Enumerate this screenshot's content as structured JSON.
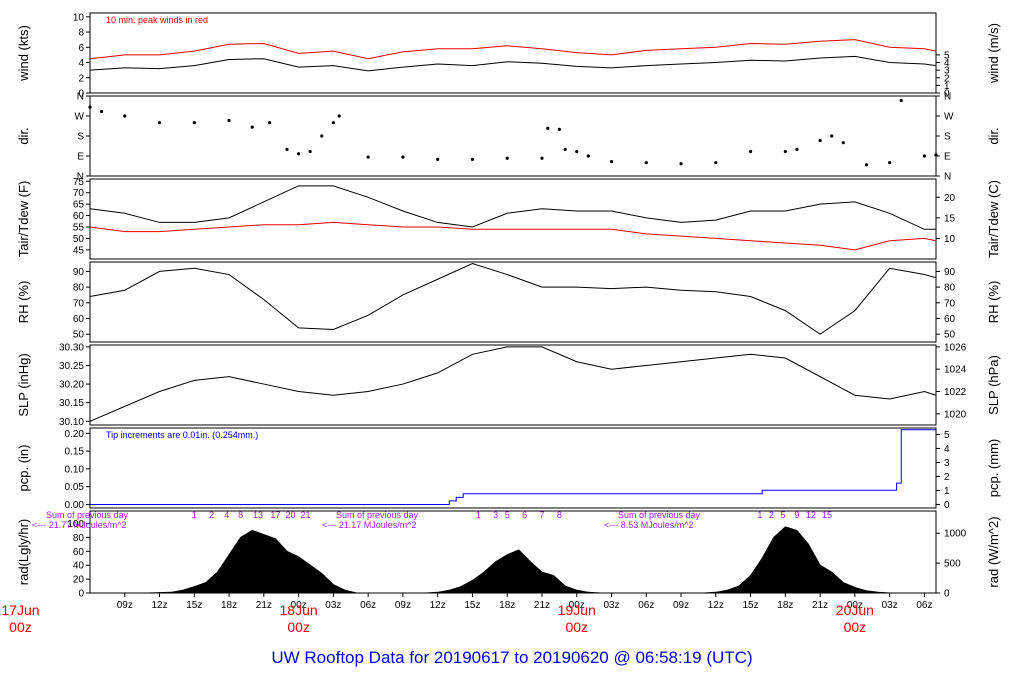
{
  "caption": "UW Rooftop Data for 20190617  to  20190620 @ 06:58:19  (UTC)",
  "colors": {
    "black": "#000000",
    "red": "#ee0000",
    "blue": "#0000ee",
    "purple": "#a020f0"
  },
  "chart_data": {
    "type": "line",
    "time": {
      "hours_start": 6,
      "hours_end": 79,
      "hour_ticks": [
        "09z",
        "12z",
        "15z",
        "18z",
        "21z",
        "00z",
        "03z",
        "06z",
        "09z",
        "12z",
        "15z",
        "18z",
        "21z",
        "00z",
        "03z",
        "06z",
        "09z",
        "12z",
        "15z",
        "18z",
        "21z",
        "00z",
        "03z",
        "06z"
      ],
      "hour_tick_values": [
        9,
        12,
        15,
        18,
        21,
        24,
        27,
        30,
        33,
        36,
        39,
        42,
        45,
        48,
        51,
        54,
        57,
        60,
        63,
        66,
        69,
        72,
        75,
        78
      ],
      "day_labels": [
        {
          "hour": 0,
          "label": "17Jun",
          "sub": "00z"
        },
        {
          "hour": 24,
          "label": "18Jun",
          "sub": "00z"
        },
        {
          "hour": 48,
          "label": "19Jun",
          "sub": "00z"
        },
        {
          "hour": 72,
          "label": "20Jun",
          "sub": "00z"
        }
      ]
    },
    "panels": [
      {
        "id": "wind",
        "ylabel": "wind (kts)",
        "y2label": "wind (m/s)",
        "ylim": [
          0,
          10.5
        ],
        "yticks": [
          "0",
          "2",
          "4",
          "6",
          "8",
          "10"
        ],
        "ytick_values": [
          0,
          2,
          4,
          6,
          8,
          10
        ],
        "y2ticks": [
          "0",
          "1",
          "2",
          "3",
          "4",
          "5"
        ],
        "y2tick_values": [
          0,
          1,
          2,
          3,
          4,
          5
        ],
        "annotation": "10 min. peak winds in red",
        "series": [
          {
            "name": "wind",
            "color": "#000000",
            "x": [
              6,
              9,
              12,
              15,
              18,
              21,
              24,
              27,
              30,
              33,
              36,
              39,
              42,
              45,
              48,
              51,
              54,
              57,
              60,
              63,
              66,
              69,
              72,
              75,
              78,
              79
            ],
            "y": [
              3.0,
              3.3,
              3.2,
              3.6,
              4.4,
              4.5,
              3.4,
              3.6,
              2.9,
              3.4,
              3.8,
              3.6,
              4.1,
              3.9,
              3.5,
              3.3,
              3.6,
              3.8,
              4.0,
              4.3,
              4.2,
              4.6,
              4.8,
              4.0,
              3.8,
              3.6
            ]
          },
          {
            "name": "peak",
            "color": "#ee0000",
            "x": [
              6,
              9,
              12,
              15,
              18,
              21,
              24,
              27,
              30,
              33,
              36,
              39,
              42,
              45,
              48,
              51,
              54,
              57,
              60,
              63,
              66,
              69,
              72,
              75,
              78,
              79
            ],
            "y": [
              4.5,
              5.0,
              5.0,
              5.5,
              6.4,
              6.5,
              5.2,
              5.5,
              4.5,
              5.4,
              5.8,
              5.8,
              6.2,
              5.8,
              5.3,
              5.0,
              5.6,
              5.8,
              6.0,
              6.5,
              6.4,
              6.8,
              7.0,
              6.0,
              5.8,
              5.5
            ]
          }
        ]
      },
      {
        "id": "dir",
        "ylabel": "dir.",
        "y2label": "dir.",
        "ylim": [
          0,
          360
        ],
        "yticks": [
          "N",
          "E",
          "S",
          "W",
          "N"
        ],
        "ytick_values": [
          0,
          90,
          180,
          270,
          360
        ],
        "y2ticks": [
          "N",
          "E",
          "S",
          "W",
          "N"
        ],
        "y2tick_values": [
          0,
          90,
          180,
          270,
          360
        ],
        "series": [
          {
            "name": "dir",
            "color": "#000000",
            "x": [
              6,
              7,
              9,
              12,
              15,
              18,
              20,
              21.5,
              23,
              24,
              25,
              26,
              27,
              27.5,
              30,
              33,
              36,
              39,
              42,
              45,
              45.5,
              46.5,
              47,
              48,
              49,
              51,
              54,
              57,
              60,
              63,
              66,
              67,
              69,
              70,
              71,
              73,
              75,
              76,
              78,
              79
            ],
            "y": [
              310,
              290,
              270,
              240,
              240,
              250,
              220,
              240,
              120,
              100,
              110,
              180,
              240,
              270,
              85,
              85,
              75,
              75,
              80,
              80,
              215,
              210,
              120,
              110,
              90,
              65,
              60,
              55,
              60,
              110,
              110,
              120,
              160,
              180,
              150,
              50,
              60,
              340,
              90,
              95
            ]
          }
        ]
      },
      {
        "id": "temp",
        "ylabel": "Tair/Tdew (F)",
        "y2label": "Tair/Tdew (C)",
        "ylim": [
          41,
          76
        ],
        "yticks": [
          "45",
          "50",
          "55",
          "60",
          "65",
          "70",
          "75"
        ],
        "ytick_values": [
          45,
          50,
          55,
          60,
          65,
          70,
          75
        ],
        "y2ticks": [
          "10",
          "15",
          "20"
        ],
        "y2tick_values": [
          50,
          59,
          68
        ],
        "series": [
          {
            "name": "Tair",
            "color": "#000000",
            "x": [
              6,
              9,
              12,
              15,
              18,
              21,
              24,
              27,
              30,
              33,
              36,
              39,
              42,
              45,
              48,
              51,
              54,
              57,
              60,
              63,
              66,
              69,
              72,
              75,
              78,
              79
            ],
            "y": [
              63,
              61,
              57,
              57,
              59,
              66,
              73,
              73,
              68,
              62,
              57,
              55,
              61,
              63,
              62,
              62,
              59,
              57,
              58,
              62,
              62,
              65,
              66,
              61,
              54,
              54
            ]
          },
          {
            "name": "Tdew",
            "color": "#ee0000",
            "x": [
              6,
              9,
              12,
              15,
              18,
              21,
              24,
              27,
              30,
              33,
              36,
              39,
              42,
              45,
              48,
              51,
              54,
              57,
              60,
              63,
              66,
              69,
              72,
              75,
              78,
              79
            ],
            "y": [
              55,
              53,
              53,
              54,
              55,
              56,
              56,
              57,
              56,
              55,
              55,
              54,
              54,
              54,
              54,
              54,
              52,
              51,
              50,
              49,
              48,
              47,
              45,
              49,
              50,
              49
            ]
          }
        ]
      },
      {
        "id": "rh",
        "ylabel": "RH (%)",
        "y2label": "RH (%)",
        "ylim": [
          45,
          96
        ],
        "yticks": [
          "50",
          "60",
          "70",
          "80",
          "90"
        ],
        "ytick_values": [
          50,
          60,
          70,
          80,
          90
        ],
        "y2ticks": [
          "50",
          "60",
          "70",
          "80",
          "90"
        ],
        "y2tick_values": [
          50,
          60,
          70,
          80,
          90
        ],
        "series": [
          {
            "name": "RH",
            "color": "#000000",
            "x": [
              6,
              9,
              12,
              15,
              18,
              21,
              24,
              27,
              30,
              33,
              36,
              39,
              42,
              45,
              48,
              51,
              54,
              57,
              60,
              63,
              66,
              69,
              72,
              75,
              78,
              79
            ],
            "y": [
              74,
              78,
              90,
              92,
              88,
              72,
              54,
              53,
              62,
              75,
              85,
              95,
              88,
              80,
              80,
              79,
              80,
              78,
              77,
              74,
              65,
              50,
              65,
              92,
              88,
              86
            ]
          }
        ]
      },
      {
        "id": "slp",
        "ylabel": "SLP (inHg)",
        "y2label": "SLP (hPa)",
        "ylim": [
          30.09,
          30.305
        ],
        "yticks": [
          "30.10",
          "30.15",
          "30.20",
          "30.25",
          "30.30"
        ],
        "ytick_values": [
          30.1,
          30.15,
          30.2,
          30.25,
          30.3
        ],
        "y2ticks": [
          "1020",
          "1022",
          "1024",
          "1026"
        ],
        "y2tick_values": [
          30.12,
          30.18,
          30.24,
          30.3
        ],
        "series": [
          {
            "name": "SLP",
            "color": "#000000",
            "x": [
              6,
              9,
              12,
              15,
              18,
              21,
              24,
              27,
              30,
              33,
              36,
              39,
              42,
              45,
              48,
              51,
              54,
              57,
              60,
              63,
              66,
              69,
              72,
              75,
              78,
              79
            ],
            "y": [
              30.1,
              30.14,
              30.18,
              30.21,
              30.22,
              30.2,
              30.18,
              30.17,
              30.18,
              30.2,
              30.23,
              30.28,
              30.3,
              30.3,
              30.26,
              30.24,
              30.25,
              30.26,
              30.27,
              30.28,
              30.27,
              30.22,
              30.17,
              30.16,
              30.18,
              30.17
            ]
          }
        ]
      },
      {
        "id": "pcp",
        "ylabel": "pcp. (in)",
        "y2label": "pcp. (mm)",
        "ylim": [
          -0.01,
          0.215
        ],
        "yticks": [
          "0.00",
          "0.05",
          "0.10",
          "0.15",
          "0.20"
        ],
        "ytick_values": [
          0,
          0.05,
          0.1,
          0.15,
          0.2
        ],
        "y2ticks": [
          "0",
          "1",
          "2",
          "3",
          "4",
          "5"
        ],
        "y2tick_values": [
          0,
          0.0394,
          0.0787,
          0.1181,
          0.1575,
          0.1969
        ],
        "annotation": "Tip increments are 0.01in. (0.254mm.)",
        "series": [
          {
            "name": "pcp",
            "color": "#0000ee",
            "x": [
              6,
              36.5,
              37,
              37.6,
              38.2,
              38.8,
              63.5,
              64,
              75.2,
              75.6,
              76,
              79
            ],
            "y": [
              0,
              0,
              0.01,
              0.02,
              0.03,
              0.03,
              0.03,
              0.04,
              0.04,
              0.06,
              0.21,
              0.21
            ]
          }
        ]
      },
      {
        "id": "rad",
        "ylabel": "rad(Lgly/hr)",
        "y2label": "rad (W/m^2)",
        "ylim": [
          0,
          118
        ],
        "yticks": [
          "0",
          "20",
          "40",
          "60",
          "80",
          "100"
        ],
        "ytick_values": [
          0,
          20,
          40,
          60,
          80,
          100
        ],
        "y2ticks": [
          "0",
          "500",
          "1000"
        ],
        "y2tick_values": [
          0,
          43,
          86
        ],
        "series": [
          {
            "name": "rad",
            "color": "#000000",
            "x": [
              6,
              9,
              11,
              13,
              14,
              15,
              16,
              17,
              18,
              19,
              20,
              21,
              22,
              23,
              24,
              25,
              26,
              27,
              28,
              29,
              33,
              35,
              36,
              37,
              38,
              39,
              40,
              41,
              42,
              43,
              44,
              45,
              46,
              47,
              48,
              49,
              50,
              51,
              57,
              59,
              60,
              61,
              62,
              63,
              64,
              65,
              66,
              67,
              68,
              69,
              70,
              71,
              72,
              73,
              74,
              75,
              79
            ],
            "y": [
              0,
              0,
              0,
              1,
              4,
              9,
              15,
              30,
              55,
              80,
              90,
              84,
              78,
              60,
              52,
              40,
              28,
              12,
              4,
              0,
              0,
              0,
              1,
              4,
              9,
              18,
              30,
              45,
              55,
              62,
              45,
              30,
              25,
              10,
              4,
              1,
              0,
              0,
              0,
              0,
              1,
              4,
              10,
              25,
              50,
              80,
              95,
              90,
              70,
              40,
              30,
              15,
              8,
              3,
              1,
              0,
              0
            ]
          }
        ]
      }
    ],
    "rad_annotations": [
      {
        "line1": "Sum of previous day",
        "line2": "<--- 21.77 MJoules/m^2"
      },
      {
        "line1": "Sum of previous day",
        "line2": "<--- 21.17 MJoules/m^2"
      },
      {
        "line1": "Sum of previous day",
        "line2": "<--- 8.53 MJoules/m^2"
      }
    ],
    "rad_hour_marks": [
      {
        "text": "1",
        "hour": 15
      },
      {
        "text": "2",
        "hour": 16.5
      },
      {
        "text": "4",
        "hour": 17.8
      },
      {
        "text": "8",
        "hour": 19
      },
      {
        "text": "13",
        "hour": 20.5
      },
      {
        "text": "17",
        "hour": 22
      },
      {
        "text": "20",
        "hour": 23.3
      },
      {
        "text": "21",
        "hour": 24.6
      },
      {
        "text": "1",
        "hour": 39.5
      },
      {
        "text": "3",
        "hour": 41
      },
      {
        "text": "5",
        "hour": 42
      },
      {
        "text": "6",
        "hour": 43.5
      },
      {
        "text": "7",
        "hour": 45
      },
      {
        "text": "8",
        "hour": 46.5
      },
      {
        "text": "1",
        "hour": 63.8
      },
      {
        "text": "2",
        "hour": 64.8
      },
      {
        "text": "5",
        "hour": 65.8
      },
      {
        "text": "9",
        "hour": 67
      },
      {
        "text": "12",
        "hour": 68.2
      },
      {
        "text": "15",
        "hour": 69.6
      }
    ]
  }
}
